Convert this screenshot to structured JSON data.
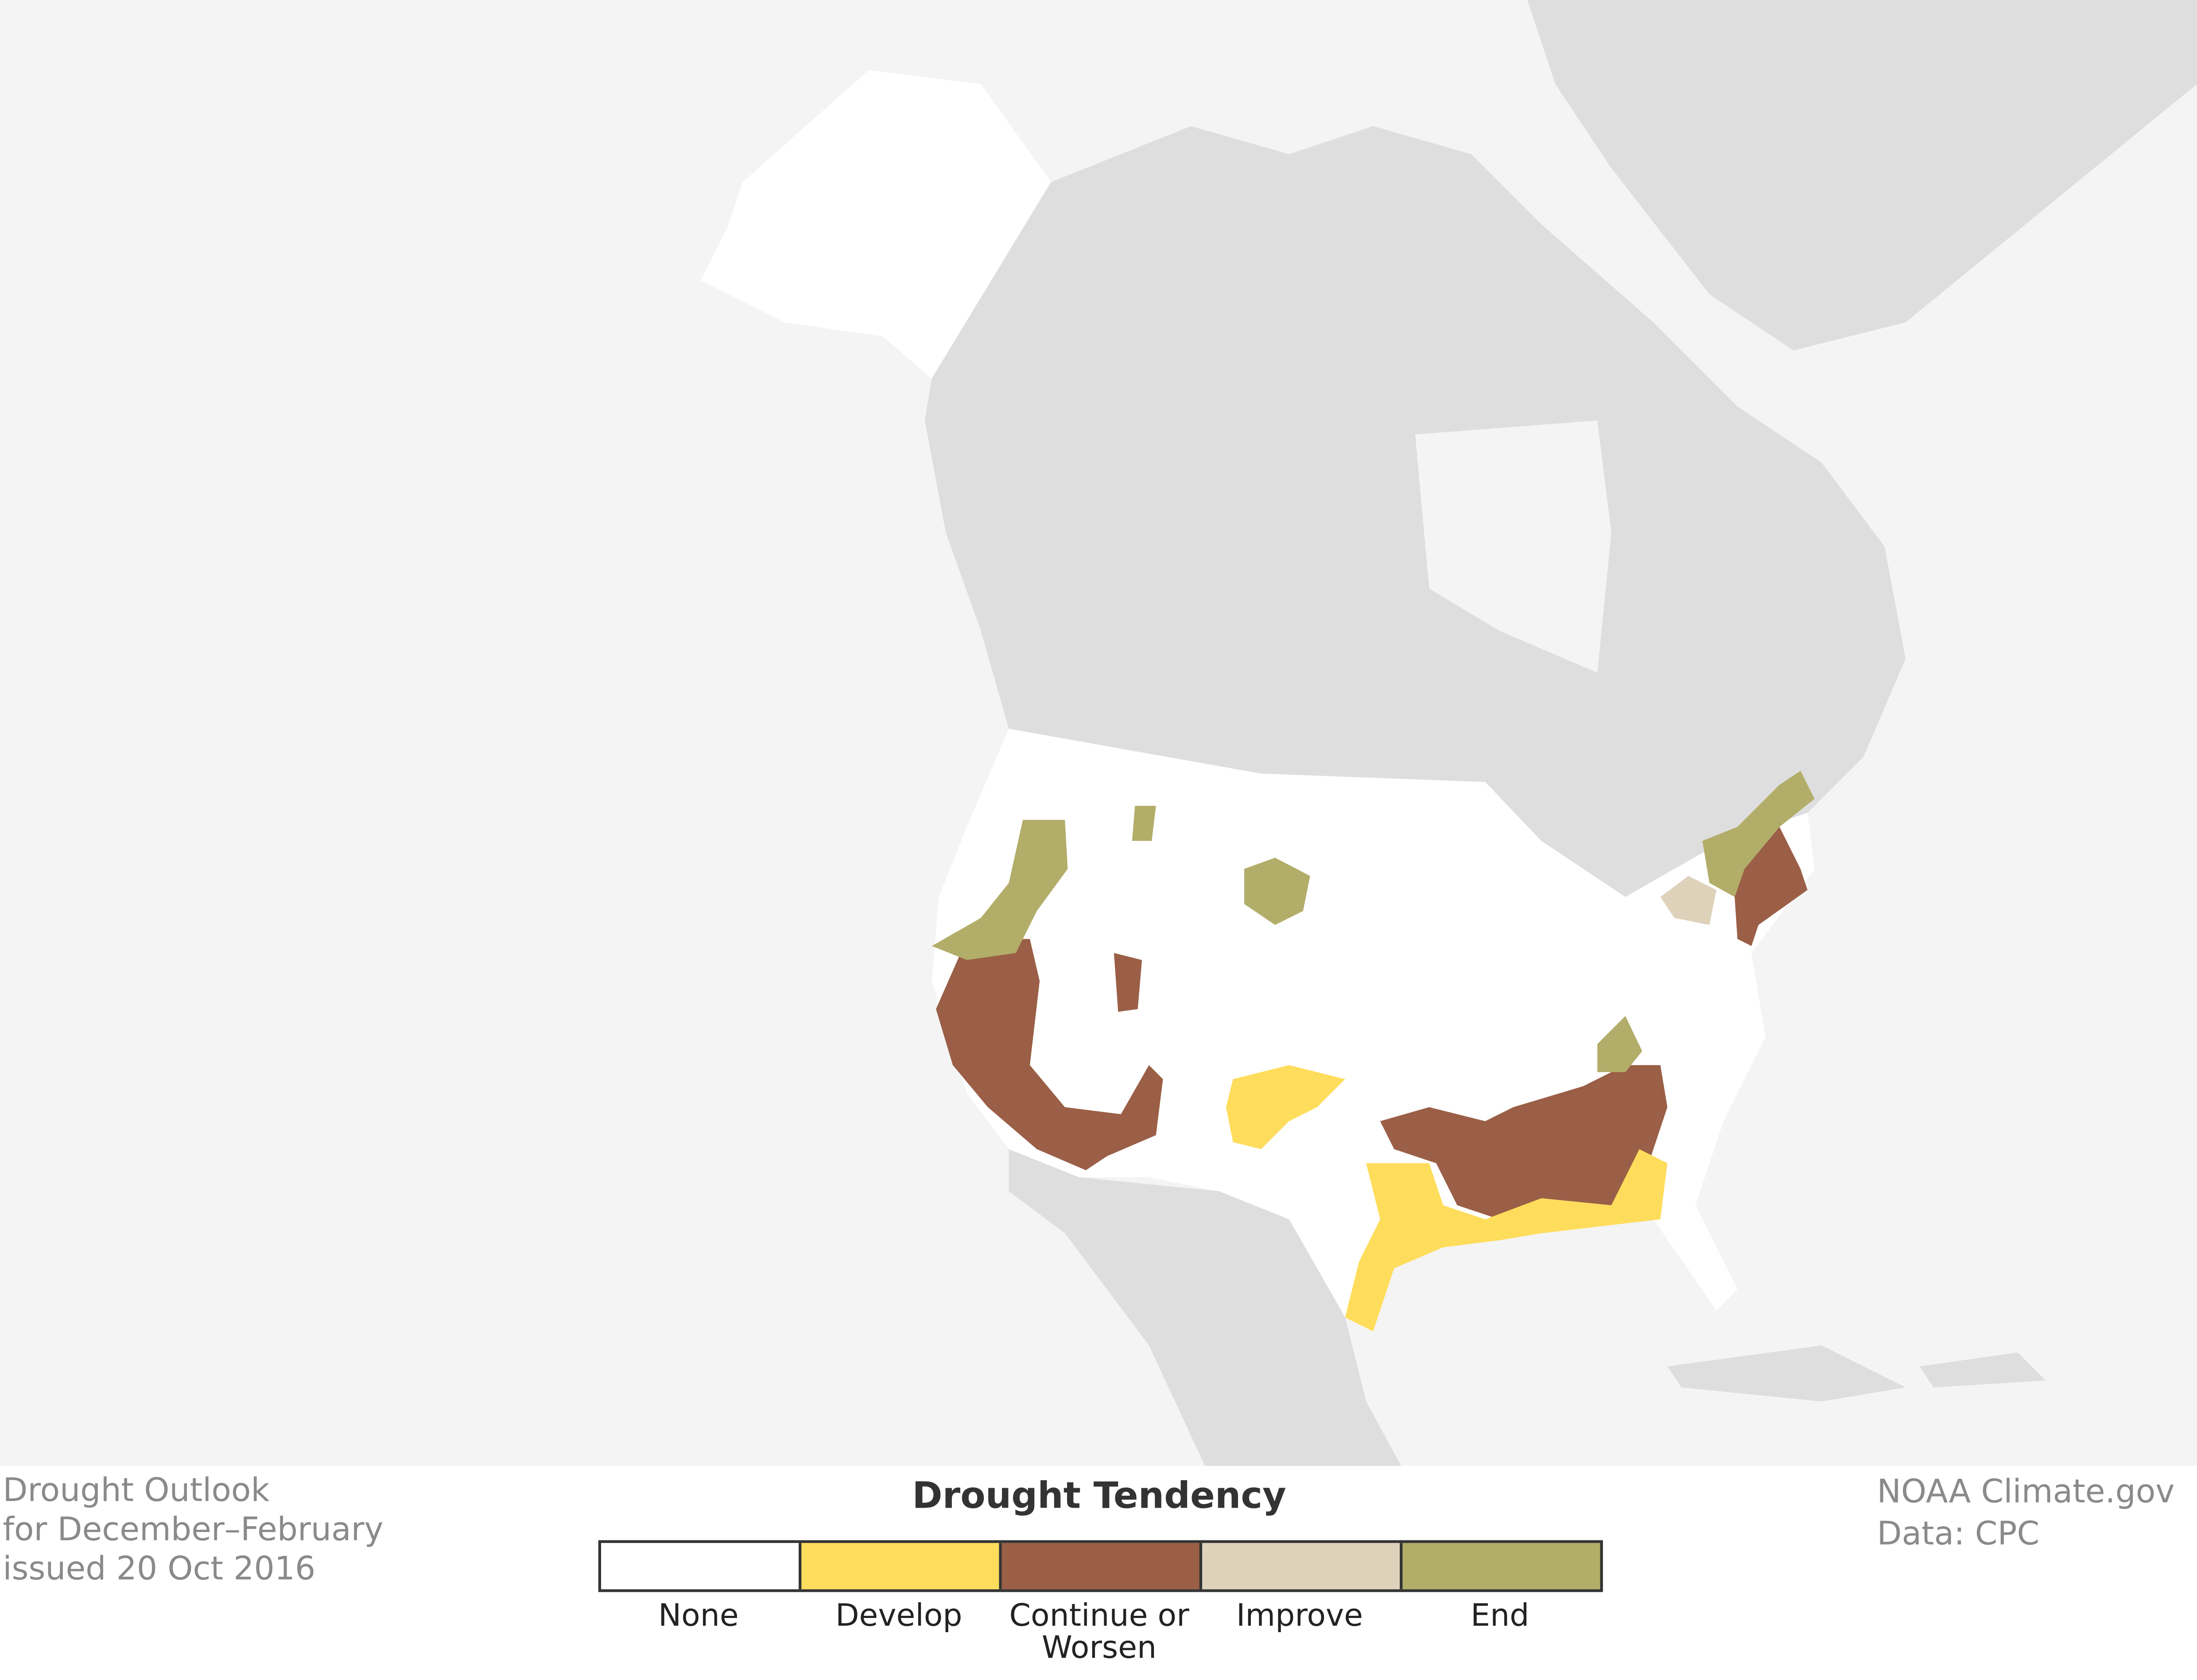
{
  "title": {
    "lines": [
      "Drought Outlook",
      "for December–February",
      "issued 20 Oct 2016"
    ]
  },
  "credit": {
    "lines": [
      "NOAA Climate.gov",
      "Data: CPC"
    ]
  },
  "legend": {
    "title": "Drought Tendency",
    "items": [
      {
        "label": "None",
        "color": "#ffffff"
      },
      {
        "label": "Develop",
        "color": "#ffdd5c"
      },
      {
        "label": "Continue or Worsen",
        "color": "#9a5f46"
      },
      {
        "label": "Improve",
        "color": "#ded2bb"
      },
      {
        "label": "End",
        "color": "#b2ad68"
      }
    ]
  }
}
